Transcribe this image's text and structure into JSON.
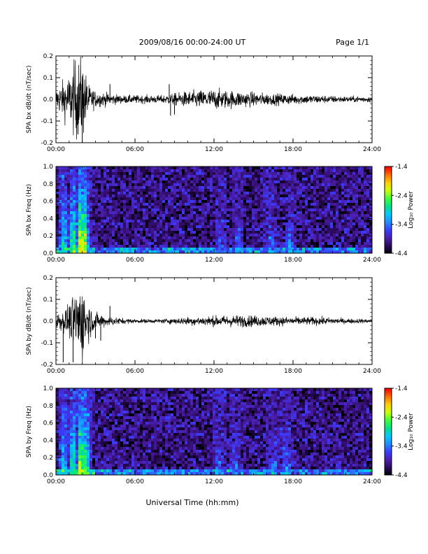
{
  "header": {
    "title": "2009/08/16  00:00-24:00 UT",
    "page_label": "Page 1/1"
  },
  "x_axis": {
    "label": "Universal Time (hh:mm)",
    "ticks": [
      "00:00",
      "06:00",
      "12:00",
      "18:00",
      "24:00"
    ]
  },
  "colors": {
    "trace": "#000000",
    "colormap": [
      "#000000",
      "#2a0a5a",
      "#4b1fb0",
      "#3a3cff",
      "#1f8cff",
      "#00c8ff",
      "#00e08c",
      "#3cff3c",
      "#c8ff00",
      "#ffd000",
      "#ff7000",
      "#ff0000"
    ]
  },
  "chart_data": [
    {
      "type": "line",
      "ylabel": "SPA bx dB/dt (nT/sec)",
      "xlim": [
        0,
        24
      ],
      "ylim": [
        -0.2,
        0.2
      ],
      "yticks": [
        "0.2",
        "0.1",
        "0.0",
        "-0.1",
        "-0.2"
      ],
      "x_units": "hours UT",
      "noise_envelope": {
        "hours": [
          0,
          0.5,
          1,
          1.5,
          2,
          2.5,
          3,
          4,
          5,
          6,
          8,
          9,
          10,
          12,
          14,
          16,
          18,
          20,
          22,
          24
        ],
        "amplitude": [
          0.05,
          0.09,
          0.12,
          0.2,
          0.2,
          0.07,
          0.04,
          0.03,
          0.02,
          0.02,
          0.02,
          0.03,
          0.04,
          0.05,
          0.04,
          0.03,
          0.025,
          0.02,
          0.015,
          0.015
        ]
      },
      "spikes": [
        {
          "hour": 2.0,
          "value": -0.2
        },
        {
          "hour": 4.1,
          "value": 0.07
        },
        {
          "hour": 8.6,
          "value": 0.07
        },
        {
          "hour": 8.7,
          "value": -0.075
        },
        {
          "hour": 9.0,
          "value": -0.07
        }
      ]
    },
    {
      "type": "heatmap",
      "ylabel": "SPA bx Freq (Hz)",
      "xlim": [
        0,
        24
      ],
      "ylim": [
        0.0,
        1.0
      ],
      "yticks": [
        "1.0",
        "0.8",
        "0.6",
        "0.4",
        "0.2",
        "0.0"
      ],
      "colorbar": {
        "label": "Log₁₀ Power",
        "range": [
          -4.4,
          -1.4
        ],
        "ticks": [
          "-1.4",
          "-2.4",
          "-3.4",
          "-4.4"
        ]
      },
      "background_level": -4.0,
      "low_freq_band_level": -3.0,
      "bursts": [
        {
          "hour": 0.6,
          "level": -2.8
        },
        {
          "hour": 1.3,
          "level": -2.3
        },
        {
          "hour": 1.9,
          "level": -1.6
        },
        {
          "hour": 2.2,
          "level": -2.0
        },
        {
          "hour": 12.5,
          "level": -3.3
        },
        {
          "hour": 13.8,
          "level": -3.2
        },
        {
          "hour": 16.3,
          "level": -3.1
        },
        {
          "hour": 17.8,
          "level": -2.9
        }
      ]
    },
    {
      "type": "line",
      "ylabel": "SPA by dB/dt (nT/sec)",
      "xlim": [
        0,
        24
      ],
      "ylim": [
        -0.2,
        0.2
      ],
      "yticks": [
        "0.2",
        "0.1",
        "0.0",
        "-0.1",
        "-0.2"
      ],
      "x_units": "hours UT",
      "noise_envelope": {
        "hours": [
          0,
          0.5,
          1,
          1.5,
          2,
          2.5,
          3,
          4,
          5,
          6,
          8,
          9,
          10,
          12,
          14,
          16,
          18,
          20,
          22,
          24
        ],
        "amplitude": [
          0.04,
          0.05,
          0.08,
          0.15,
          0.2,
          0.09,
          0.04,
          0.025,
          0.015,
          0.01,
          0.01,
          0.015,
          0.02,
          0.025,
          0.03,
          0.025,
          0.02,
          0.02,
          0.012,
          0.01
        ]
      },
      "spikes": [
        {
          "hour": 0.55,
          "value": -0.19
        },
        {
          "hour": 1.3,
          "value": -0.19
        },
        {
          "hour": 3.0,
          "value": -0.08
        },
        {
          "hour": 3.4,
          "value": -0.09
        },
        {
          "hour": 4.1,
          "value": 0.07
        }
      ]
    },
    {
      "type": "heatmap",
      "ylabel": "SPA by Freq (Hz)",
      "xlim": [
        0,
        24
      ],
      "ylim": [
        0.0,
        1.0
      ],
      "yticks": [
        "1.0",
        "0.8",
        "0.6",
        "0.4",
        "0.2",
        "0.0"
      ],
      "colorbar": {
        "label": "Log₁₀ Power",
        "range": [
          -4.4,
          -1.4
        ],
        "ticks": [
          "-1.4",
          "-2.4",
          "-3.4",
          "-4.4"
        ]
      },
      "background_level": -4.0,
      "low_freq_band_level": -3.0,
      "bursts": [
        {
          "hour": 0.6,
          "level": -2.8
        },
        {
          "hour": 1.3,
          "level": -2.4
        },
        {
          "hour": 1.9,
          "level": -1.8
        },
        {
          "hour": 2.3,
          "level": -2.2
        },
        {
          "hour": 12.4,
          "level": -3.0
        },
        {
          "hour": 13.6,
          "level": -3.1
        },
        {
          "hour": 16.5,
          "level": -3.0
        },
        {
          "hour": 17.5,
          "level": -2.9
        }
      ]
    }
  ]
}
